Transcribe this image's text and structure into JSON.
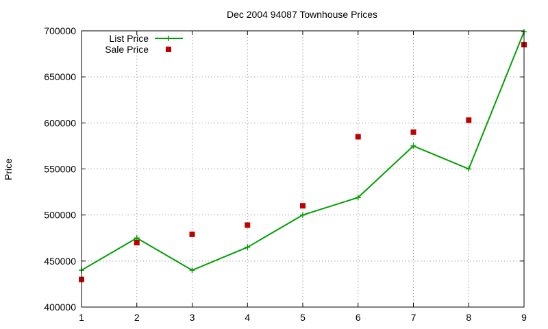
{
  "chart_data": {
    "type": "line",
    "title": "Dec 2004 94087 Townhouse Prices",
    "xlabel": "",
    "ylabel": "Price",
    "x": [
      1,
      2,
      3,
      4,
      5,
      6,
      7,
      8,
      9
    ],
    "xlim": [
      1,
      9
    ],
    "ylim": [
      400000,
      700000
    ],
    "x_ticks": [
      "1",
      "2",
      "3",
      "4",
      "5",
      "6",
      "7",
      "8",
      "9"
    ],
    "y_ticks": [
      "400000",
      "450000",
      "500000",
      "550000",
      "600000",
      "650000",
      "700000"
    ],
    "grid": true,
    "legend_position": "top-left",
    "series": [
      {
        "name": "List Price",
        "style": "linespoints",
        "marker": "plus",
        "color": "#00a000",
        "values": [
          440000,
          475000,
          440000,
          465000,
          500000,
          519000,
          575000,
          550000,
          699000
        ]
      },
      {
        "name": "Sale Price",
        "style": "points",
        "marker": "square",
        "color": "#c00000",
        "values": [
          430000,
          470000,
          479000,
          489000,
          510000,
          585000,
          590000,
          603000,
          685000
        ]
      }
    ]
  }
}
